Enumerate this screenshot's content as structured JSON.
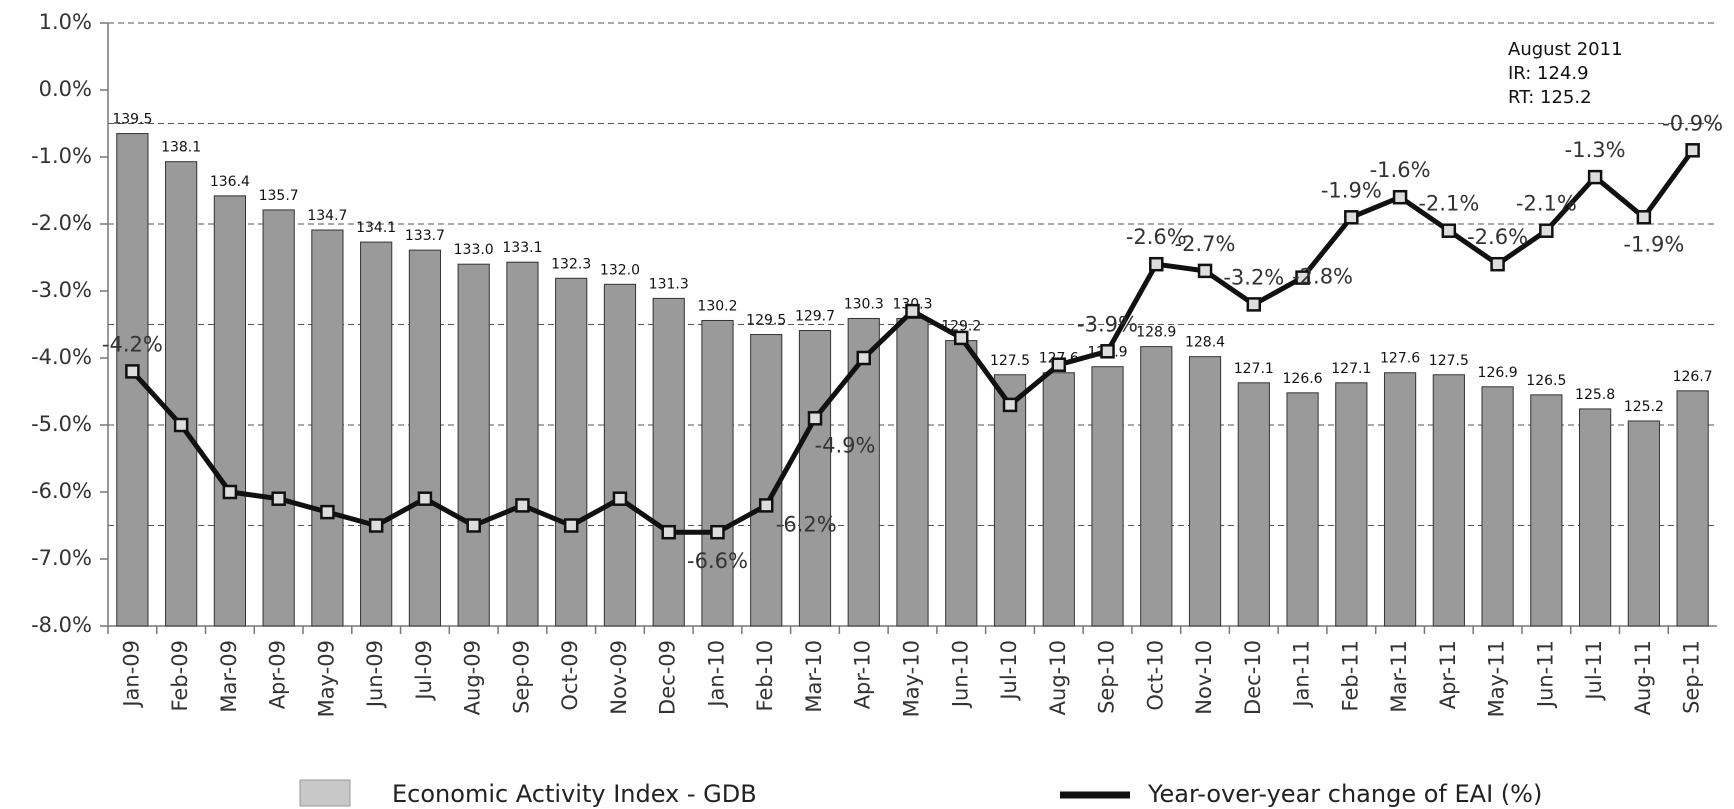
{
  "chart_data": {
    "type": "combo",
    "categories": [
      "Jan-09",
      "Feb-09",
      "Mar-09",
      "Apr-09",
      "May-09",
      "Jun-09",
      "Jul-09",
      "Aug-09",
      "Sep-09",
      "Oct-09",
      "Nov-09",
      "Dec-09",
      "Jan-10",
      "Feb-10",
      "Mar-10",
      "Apr-10",
      "May-10",
      "Jun-10",
      "Jul-10",
      "Aug-10",
      "Sep-10",
      "Oct-10",
      "Nov-10",
      "Dec-10",
      "Jan-11",
      "Feb-11",
      "Mar-11",
      "Apr-11",
      "May-11",
      "Jun-11",
      "Jul-11",
      "Aug-11",
      "Sep-11"
    ],
    "series": [
      {
        "name": "Economic Activity Index - GDB",
        "type": "bar",
        "axis": "y2",
        "color": "#9a9a9a",
        "values": [
          139.5,
          138.1,
          136.4,
          135.7,
          134.7,
          134.1,
          133.7,
          133.0,
          133.1,
          132.3,
          132.0,
          131.3,
          130.2,
          129.5,
          129.7,
          130.3,
          130.3,
          129.2,
          127.5,
          127.6,
          127.9,
          128.9,
          128.4,
          127.1,
          126.6,
          127.1,
          127.6,
          127.5,
          126.9,
          126.5,
          125.8,
          125.2,
          126.7
        ],
        "value_labels": [
          "139.5",
          "138.1",
          "136.4",
          "135.7",
          "134.7",
          "134.1",
          "133.7",
          "133.0",
          "133.1",
          "132.3",
          "132.0",
          "131.3",
          "130.2",
          "129.5",
          "129.7",
          "130.3",
          "130.3",
          "129.2",
          "127.5",
          "127.6",
          "127.9",
          "128.9",
          "128.4",
          "127.1",
          "126.6",
          "127.1",
          "127.6",
          "127.5",
          "126.9",
          "126.5",
          "125.8",
          "125.2",
          "126.7"
        ]
      },
      {
        "name": "Year-over-year change of EAI (%)",
        "type": "line",
        "color": "#111111",
        "values": [
          -4.2,
          -5.0,
          -6.0,
          -6.1,
          -6.3,
          -6.5,
          -6.1,
          -6.5,
          -6.2,
          -6.5,
          -6.1,
          -6.6,
          -6.6,
          -6.2,
          -4.9,
          -4.0,
          -3.3,
          -3.7,
          -4.7,
          -4.1,
          -3.9,
          -2.6,
          -2.7,
          -3.2,
          -2.8,
          -1.9,
          -1.6,
          -2.1,
          -2.6,
          -2.1,
          -1.3,
          -1.9,
          -0.9
        ],
        "value_labels": [
          "-4.2%",
          null,
          null,
          null,
          null,
          null,
          null,
          null,
          null,
          null,
          null,
          null,
          "-6.6%",
          "-6.2%",
          "-4.9%",
          null,
          null,
          null,
          null,
          null,
          "-3.9%",
          "-2.6%",
          "-2.7%",
          "-3.2%",
          "-2.8%",
          "-1.9%",
          "-1.6%",
          "-2.1%",
          "-2.6%",
          "-2.1%",
          "-1.3%",
          "-1.9%",
          "-0.9%"
        ]
      }
    ],
    "ylim": [
      -8,
      1
    ],
    "yticks": [
      {
        "value": 1,
        "label": "1.0%"
      },
      {
        "value": 0,
        "label": "0.0%"
      },
      {
        "value": -1,
        "label": "-1.0%"
      },
      {
        "value": -2,
        "label": "-2.0%"
      },
      {
        "value": -3,
        "label": "-3.0%"
      },
      {
        "value": -4,
        "label": "-4.0%"
      },
      {
        "value": -5,
        "label": "-5.0%"
      },
      {
        "value": -6,
        "label": "-6.0%"
      },
      {
        "value": -7,
        "label": "-7.0%"
      },
      {
        "value": -8,
        "label": "-8.0%"
      }
    ],
    "y2lim": [
      115,
      145
    ],
    "y2ticks": [
      120,
      125,
      130,
      135,
      140,
      145
    ],
    "grid": true,
    "annotation": [
      "August 2011",
      "IR: 124.9",
      "RT: 125.2"
    ]
  }
}
